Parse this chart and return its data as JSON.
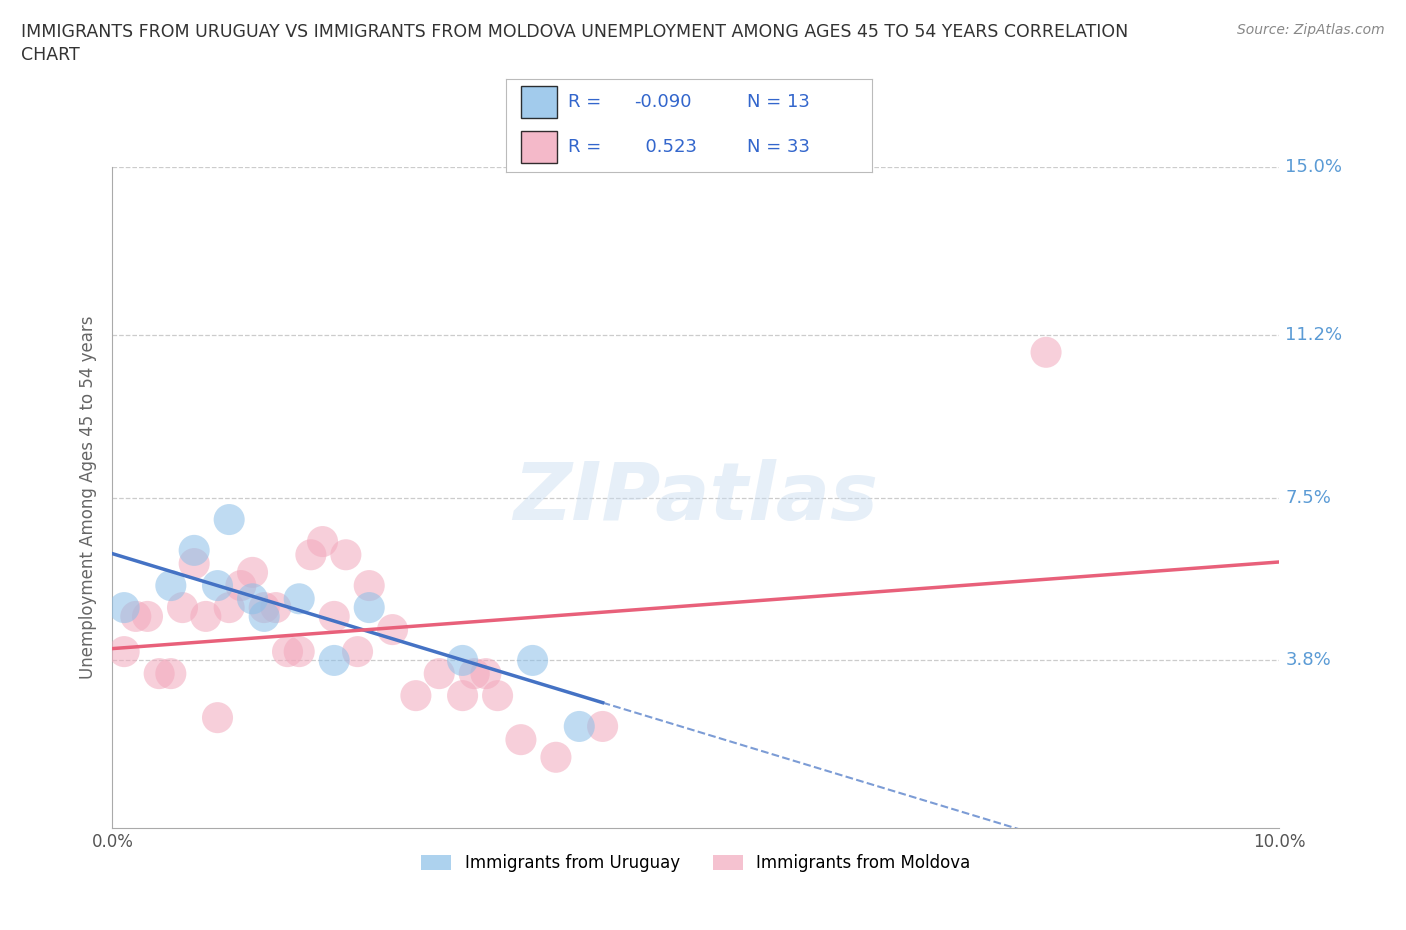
{
  "title_line1": "IMMIGRANTS FROM URUGUAY VS IMMIGRANTS FROM MOLDOVA UNEMPLOYMENT AMONG AGES 45 TO 54 YEARS CORRELATION",
  "title_line2": "CHART",
  "source": "Source: ZipAtlas.com",
  "ylabel": "Unemployment Among Ages 45 to 54 years",
  "xlim": [
    0.0,
    0.1
  ],
  "ylim": [
    0.0,
    0.15
  ],
  "yticks": [
    0.038,
    0.075,
    0.112,
    0.15
  ],
  "ytick_labels": [
    "3.8%",
    "7.5%",
    "11.2%",
    "15.0%"
  ],
  "xticks": [
    0.0,
    0.02,
    0.04,
    0.06,
    0.08,
    0.1
  ],
  "xtick_labels": [
    "0.0%",
    "",
    "",
    "",
    "",
    "10.0%"
  ],
  "watermark": "ZIPatlas",
  "uruguay_color": "#8BBFE8",
  "moldova_color": "#F2A8BC",
  "uruguay_line_color": "#4472C4",
  "moldova_line_color": "#E8607A",
  "uruguay_R": -0.09,
  "uruguay_N": 13,
  "moldova_R": 0.523,
  "moldova_N": 33,
  "uruguay_x": [
    0.001,
    0.005,
    0.007,
    0.009,
    0.01,
    0.012,
    0.013,
    0.016,
    0.019,
    0.022,
    0.03,
    0.036,
    0.04
  ],
  "uruguay_y": [
    0.05,
    0.055,
    0.063,
    0.055,
    0.07,
    0.052,
    0.048,
    0.052,
    0.038,
    0.05,
    0.038,
    0.038,
    0.023
  ],
  "moldova_x": [
    0.001,
    0.002,
    0.003,
    0.004,
    0.005,
    0.006,
    0.007,
    0.008,
    0.009,
    0.01,
    0.011,
    0.012,
    0.013,
    0.014,
    0.015,
    0.016,
    0.017,
    0.018,
    0.019,
    0.02,
    0.021,
    0.022,
    0.024,
    0.026,
    0.028,
    0.03,
    0.031,
    0.032,
    0.033,
    0.035,
    0.038,
    0.042,
    0.08
  ],
  "moldova_y": [
    0.04,
    0.048,
    0.048,
    0.035,
    0.035,
    0.05,
    0.06,
    0.048,
    0.025,
    0.05,
    0.055,
    0.058,
    0.05,
    0.05,
    0.04,
    0.04,
    0.062,
    0.065,
    0.048,
    0.062,
    0.04,
    0.055,
    0.045,
    0.03,
    0.035,
    0.03,
    0.035,
    0.035,
    0.03,
    0.02,
    0.016,
    0.023,
    0.108
  ],
  "background_color": "#FFFFFF",
  "grid_color": "#CCCCCC",
  "right_label_color": "#5B9BD5",
  "legend_text_color": "#3366CC"
}
